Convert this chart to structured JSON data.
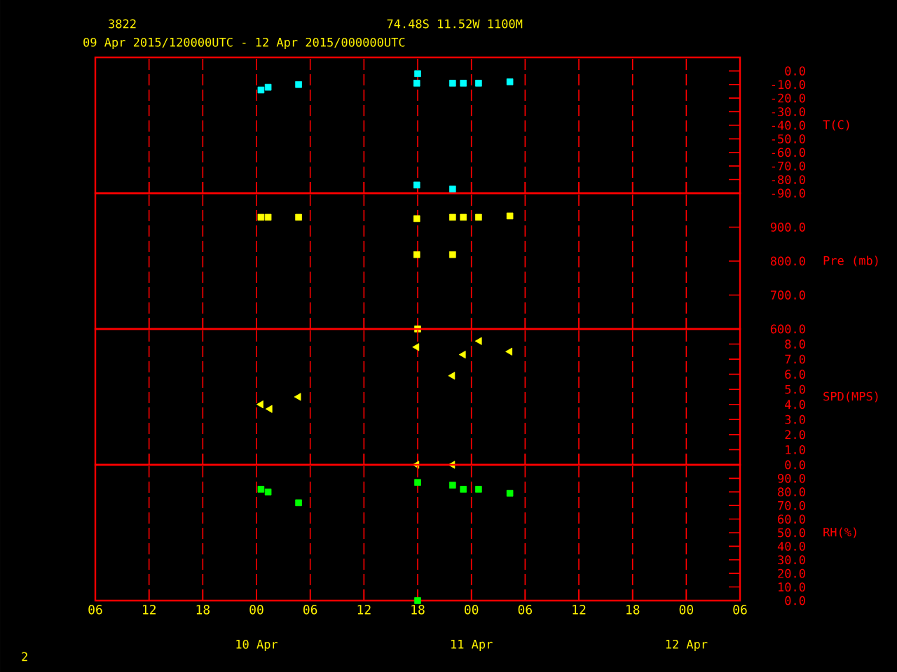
{
  "chart_data": [
    {
      "type": "scatter",
      "title": "3822",
      "subtitle": "09 Apr 2015/120000UTC - 12 Apr 2015/000000UTC",
      "annotations": [
        "74.48S   11.52W   1100M"
      ],
      "ylabel": "T(C)",
      "marker": "square",
      "grid": "x",
      "tick_labels": "y",
      "x": [
        24.5,
        25.3,
        28.7,
        42.0,
        41.9,
        41.9,
        45.9,
        47.1,
        48.8,
        52.3,
        45.9
      ],
      "values": [
        -14,
        -12,
        -10,
        -2,
        -9,
        -84,
        -9,
        -9,
        -9,
        -8,
        -87
      ],
      "color": "#00ffff",
      "xlim": [
        6,
        78
      ],
      "xticks": [
        6,
        12,
        18,
        24,
        30,
        36,
        42,
        48,
        54,
        60,
        66,
        72,
        78
      ],
      "ylim": [
        -90,
        10
      ],
      "yticks": [
        {
          "value": 0,
          "label": "0.0"
        },
        {
          "value": -10,
          "label": "-10.0"
        },
        {
          "value": -20,
          "label": "-20.0"
        },
        {
          "value": -30,
          "label": "-30.0"
        },
        {
          "value": -40,
          "label": "-40.0"
        },
        {
          "value": -50,
          "label": "-50.0"
        },
        {
          "value": -60,
          "label": "-60.0"
        },
        {
          "value": -70,
          "label": "-70.0"
        },
        {
          "value": -80,
          "label": "-80.0"
        },
        {
          "value": -90,
          "label": "-90.0"
        }
      ]
    },
    {
      "type": "scatter",
      "ylabel": "Pre (mb)",
      "marker": "square",
      "grid": "x",
      "tick_labels": "y",
      "x": [
        24.5,
        25.3,
        28.7,
        41.9,
        41.9,
        45.9,
        47.1,
        48.8,
        52.3,
        45.9,
        42.0
      ],
      "values": [
        929,
        929,
        929,
        925,
        819,
        929,
        929,
        929,
        933,
        819,
        600
      ],
      "color": "#ffff00",
      "xlim": [
        6,
        78
      ],
      "xticks": [
        6,
        12,
        18,
        24,
        30,
        36,
        42,
        48,
        54,
        60,
        66,
        72,
        78
      ],
      "ylim": [
        600,
        1000
      ],
      "yticks": [
        {
          "value": 600,
          "label": "600.0"
        },
        {
          "value": 700,
          "label": "700.0"
        },
        {
          "value": 800,
          "label": "800.0"
        },
        {
          "value": 900,
          "label": "900.0"
        }
      ]
    },
    {
      "type": "scatter",
      "ylabel": "SPD(MPS)",
      "marker": "triangle",
      "grid": "x",
      "tick_labels": "y",
      "x": [
        41.9,
        48.9,
        47.1,
        52.3,
        45.9,
        28.7,
        24.5,
        25.5,
        41.9,
        45.9
      ],
      "values": [
        7.8,
        8.2,
        7.3,
        7.5,
        5.9,
        4.5,
        4.0,
        3.7,
        0,
        0
      ],
      "color": "#ffff00",
      "xlim": [
        6,
        78
      ],
      "xticks": [
        6,
        12,
        18,
        24,
        30,
        36,
        42,
        48,
        54,
        60,
        66,
        72,
        78
      ],
      "ylim": [
        0,
        9
      ],
      "yticks": [
        {
          "value": 0,
          "label": "0.0"
        },
        {
          "value": 1,
          "label": "1.0"
        },
        {
          "value": 2,
          "label": "2.0"
        },
        {
          "value": 3,
          "label": "3.0"
        },
        {
          "value": 4,
          "label": "4.0"
        },
        {
          "value": 5,
          "label": "5.0"
        },
        {
          "value": 6,
          "label": "6.0"
        },
        {
          "value": 7,
          "label": "7.0"
        },
        {
          "value": 8,
          "label": "8.0"
        }
      ]
    },
    {
      "type": "scatter",
      "ylabel": "RH(%)",
      "marker": "square",
      "grid": "x",
      "annotations": [
        "10 Apr",
        "11 Apr",
        "12 Apr",
        "2"
      ],
      "x": [
        24.5,
        25.3,
        28.7,
        42.0,
        45.9,
        47.1,
        48.8,
        52.3,
        42.0
      ],
      "values": [
        82,
        80,
        72,
        87,
        85,
        82,
        82,
        79,
        0
      ],
      "color": "#00ff00",
      "xlim": [
        6,
        78
      ],
      "xticks": [
        {
          "value": 6,
          "label": "06"
        },
        {
          "value": 12,
          "label": "12"
        },
        {
          "value": 18,
          "label": "18"
        },
        {
          "value": 24,
          "label": "00"
        },
        {
          "value": 30,
          "label": "06"
        },
        {
          "value": 36,
          "label": "12"
        },
        {
          "value": 42,
          "label": "18"
        },
        {
          "value": 48,
          "label": "00"
        },
        {
          "value": 54,
          "label": "06"
        },
        {
          "value": 60,
          "label": "12"
        },
        {
          "value": 66,
          "label": "18"
        },
        {
          "value": 72,
          "label": "00"
        },
        {
          "value": 78,
          "label": "06"
        }
      ],
      "ylim": [
        0,
        100
      ],
      "yticks": [
        {
          "value": 0,
          "label": "0.0"
        },
        {
          "value": 10,
          "label": "10.0"
        },
        {
          "value": 20,
          "label": "20.0"
        },
        {
          "value": 30,
          "label": "30.0"
        },
        {
          "value": 40,
          "label": "40.0"
        },
        {
          "value": 50,
          "label": "50.0"
        },
        {
          "value": 60,
          "label": "60.0"
        },
        {
          "value": 70,
          "label": "70.0"
        },
        {
          "value": 80,
          "label": "80.0"
        },
        {
          "value": 90,
          "label": "90.0"
        }
      ]
    }
  ]
}
